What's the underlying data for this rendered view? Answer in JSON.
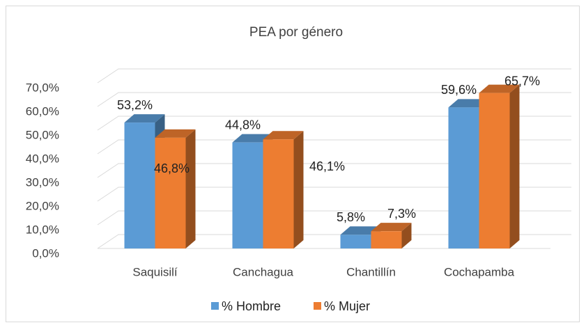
{
  "chart_data": {
    "type": "bar3d",
    "title": "PEA por género",
    "categories": [
      "Saquisilí",
      "Canchagua",
      "Chantillín",
      "Cochapamba"
    ],
    "series": [
      {
        "name": "% Hombre",
        "color": "#5b9bd5",
        "values": [
          53.2,
          44.8,
          5.8,
          59.6
        ],
        "value_labels": [
          "53,2%",
          "44,8%",
          "5,8%",
          "59,6%"
        ]
      },
      {
        "name": "% Mujer",
        "color": "#ed7d31",
        "values": [
          46.8,
          46.1,
          7.3,
          65.7
        ],
        "value_labels": [
          "46,8%",
          "46,1%",
          "7,3%",
          "65,7%"
        ]
      }
    ],
    "ylim": [
      0,
      70
    ],
    "yticks": [
      {
        "value": 0,
        "label": "0,0%"
      },
      {
        "value": 10,
        "label": "10,0%"
      },
      {
        "value": 20,
        "label": "20,0%"
      },
      {
        "value": 30,
        "label": "30,0%"
      },
      {
        "value": 40,
        "label": "40,0%"
      },
      {
        "value": 50,
        "label": "50,0%"
      },
      {
        "value": 60,
        "label": "60,0%"
      },
      {
        "value": 70,
        "label": "70,0%"
      }
    ],
    "grid": true,
    "legend": "bottom"
  }
}
